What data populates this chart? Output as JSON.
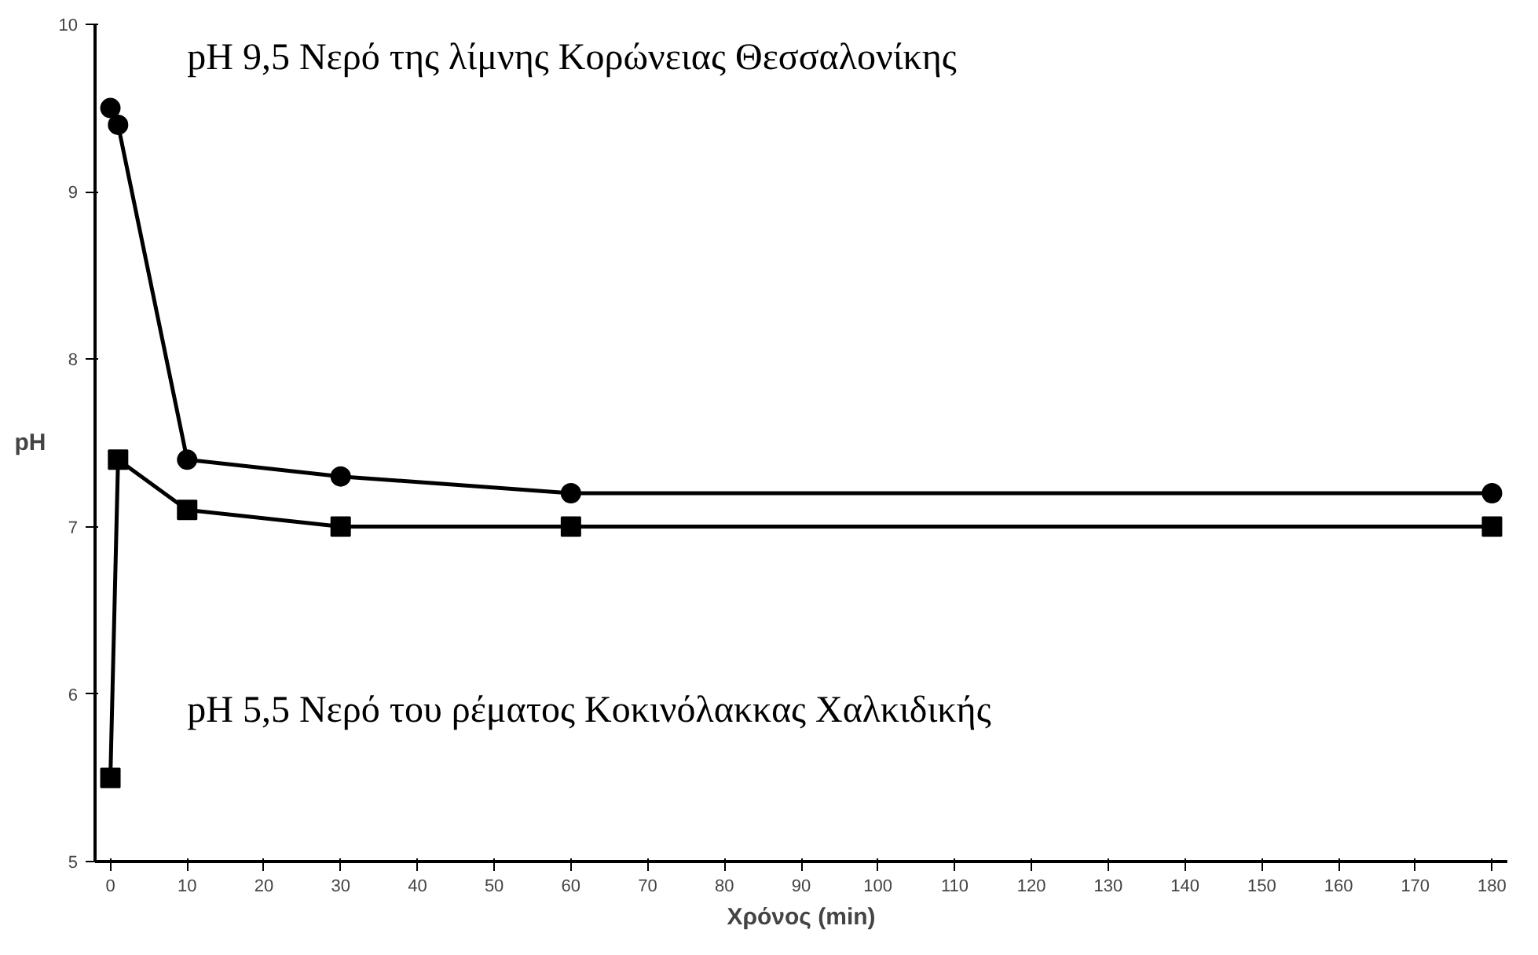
{
  "chart_data": {
    "type": "line",
    "xlabel": "Χρόνος (min)",
    "ylabel": "pH",
    "xlim": [
      -2,
      182
    ],
    "ylim": [
      5,
      10
    ],
    "xticks": [
      0,
      10,
      20,
      30,
      40,
      50,
      60,
      70,
      80,
      90,
      100,
      110,
      120,
      130,
      140,
      150,
      160,
      170,
      180
    ],
    "yticks": [
      5,
      6,
      7,
      8,
      9,
      10
    ],
    "grid": false,
    "series": [
      {
        "name": "pH 9,5 Νερό της λίμνης Κορώνειας Θεσσαλονίκης",
        "color": "#000000",
        "marker": "circle",
        "x": [
          0,
          1,
          10,
          30,
          60,
          180
        ],
        "values": [
          9.5,
          9.4,
          7.4,
          7.3,
          7.2,
          7.2
        ]
      },
      {
        "name": "pH 5,5 Νερό του ρέματος Κοκινόλακκας Χαλκιδικής",
        "color": "#000000",
        "marker": "square",
        "x": [
          0,
          1,
          10,
          30,
          60,
          180
        ],
        "values": [
          5.5,
          7.4,
          7.1,
          7.0,
          7.0,
          7.0
        ]
      }
    ]
  }
}
